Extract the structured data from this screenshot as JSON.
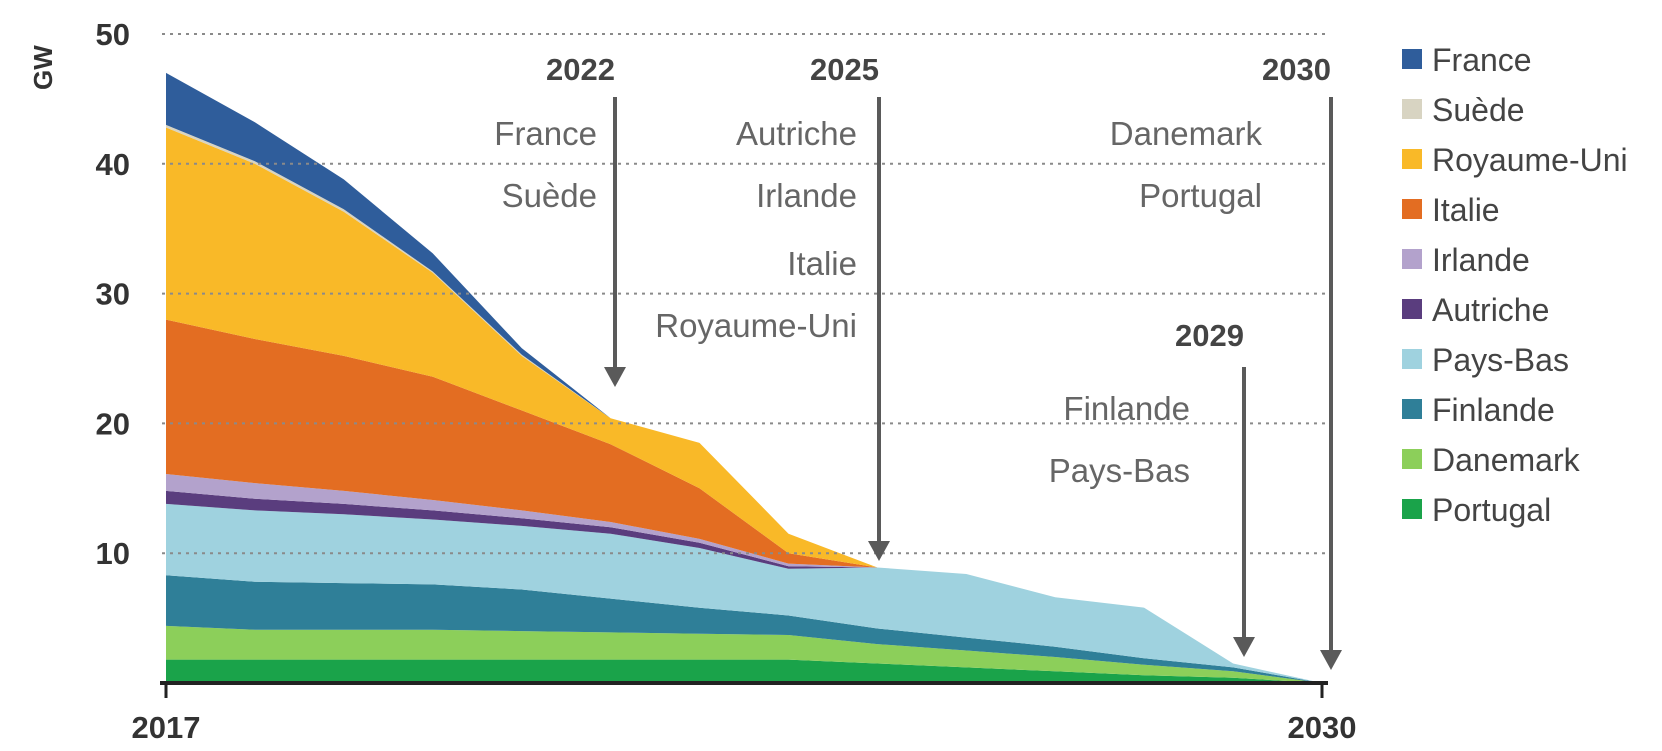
{
  "chart_data": {
    "type": "area",
    "stacked": true,
    "ylabel": "GW",
    "ylim": [
      0,
      50
    ],
    "y_ticks": [
      "10",
      "20",
      "30",
      "40",
      "50"
    ],
    "x_tick_labels": [
      "2017",
      "2030"
    ],
    "x": [
      2017,
      2018,
      2019,
      2020,
      2021,
      2022,
      2023,
      2024,
      2025,
      2026,
      2027,
      2028,
      2029,
      2030
    ],
    "grid": true,
    "legend_position": "right",
    "series": [
      {
        "name": "Portugal",
        "color": "#1aa34a",
        "values": [
          1.8,
          1.8,
          1.8,
          1.8,
          1.8,
          1.8,
          1.8,
          1.8,
          1.5,
          1.2,
          0.9,
          0.6,
          0.4,
          0
        ]
      },
      {
        "name": "Danemark",
        "color": "#8ccf5a",
        "values": [
          2.6,
          2.3,
          2.3,
          2.3,
          2.2,
          2.1,
          2.0,
          1.9,
          1.5,
          1.3,
          1.1,
          0.8,
          0.5,
          0
        ]
      },
      {
        "name": "Finlande",
        "color": "#2f7f98",
        "values": [
          3.9,
          3.7,
          3.6,
          3.5,
          3.2,
          2.6,
          2.0,
          1.5,
          1.2,
          1.0,
          0.8,
          0.5,
          0.3,
          0
        ]
      },
      {
        "name": "Pays-Bas",
        "color": "#9fd2df",
        "values": [
          5.5,
          5.5,
          5.3,
          5.0,
          4.9,
          5.0,
          4.6,
          3.6,
          4.7,
          4.9,
          3.8,
          3.9,
          0.3,
          0
        ]
      },
      {
        "name": "Autriche",
        "color": "#5a3d7e",
        "values": [
          1.0,
          0.9,
          0.8,
          0.7,
          0.6,
          0.5,
          0.4,
          0.2,
          0,
          0,
          0,
          0,
          0,
          0
        ]
      },
      {
        "name": "Irlande",
        "color": "#b3a2cc",
        "values": [
          1.3,
          1.2,
          1.0,
          0.8,
          0.6,
          0.4,
          0.3,
          0.2,
          0,
          0,
          0,
          0,
          0,
          0
        ]
      },
      {
        "name": "Italie",
        "color": "#e36d22",
        "values": [
          11.9,
          11.1,
          10.4,
          9.5,
          7.7,
          6.0,
          3.9,
          0.8,
          0,
          0,
          0,
          0,
          0,
          0
        ]
      },
      {
        "name": "Royaume-Uni",
        "color": "#f9b928",
        "values": [
          14.8,
          13.5,
          11.1,
          8.0,
          4.2,
          2.0,
          3.5,
          1.5,
          0,
          0,
          0,
          0,
          0,
          0
        ]
      },
      {
        "name": "Suède",
        "color": "#d8d4c2",
        "values": [
          0.2,
          0.2,
          0.2,
          0.1,
          0.1,
          0,
          0,
          0,
          0,
          0,
          0,
          0,
          0,
          0
        ]
      },
      {
        "name": "France",
        "color": "#2f5d9b",
        "values": [
          4.0,
          3.0,
          2.3,
          1.4,
          0.5,
          0,
          0,
          0,
          0,
          0,
          0,
          0,
          0,
          0
        ]
      }
    ],
    "legend_order": [
      "France",
      "Suède",
      "Royaume-Uni",
      "Italie",
      "Irlande",
      "Autriche",
      "Pays-Bas",
      "Finlande",
      "Danemark",
      "Portugal"
    ],
    "annotations": [
      {
        "year": "2022",
        "x": 2022,
        "arrow_to": 22.8,
        "labels": [
          "France",
          "Suède"
        ]
      },
      {
        "year": "2025",
        "x": 2025,
        "arrow_to": 9.4,
        "labels": [
          "Autriche",
          "Irlande",
          "Italie",
          "Royaume-Uni"
        ]
      },
      {
        "year": "2029",
        "x": 2029,
        "arrow_to": 2.0,
        "labels": [
          "Finlande",
          "Pays-Bas"
        ]
      },
      {
        "year": "2030",
        "x": 2030,
        "arrow_to": 1.0,
        "labels": [
          "Danemark",
          "Portugal"
        ]
      }
    ]
  }
}
